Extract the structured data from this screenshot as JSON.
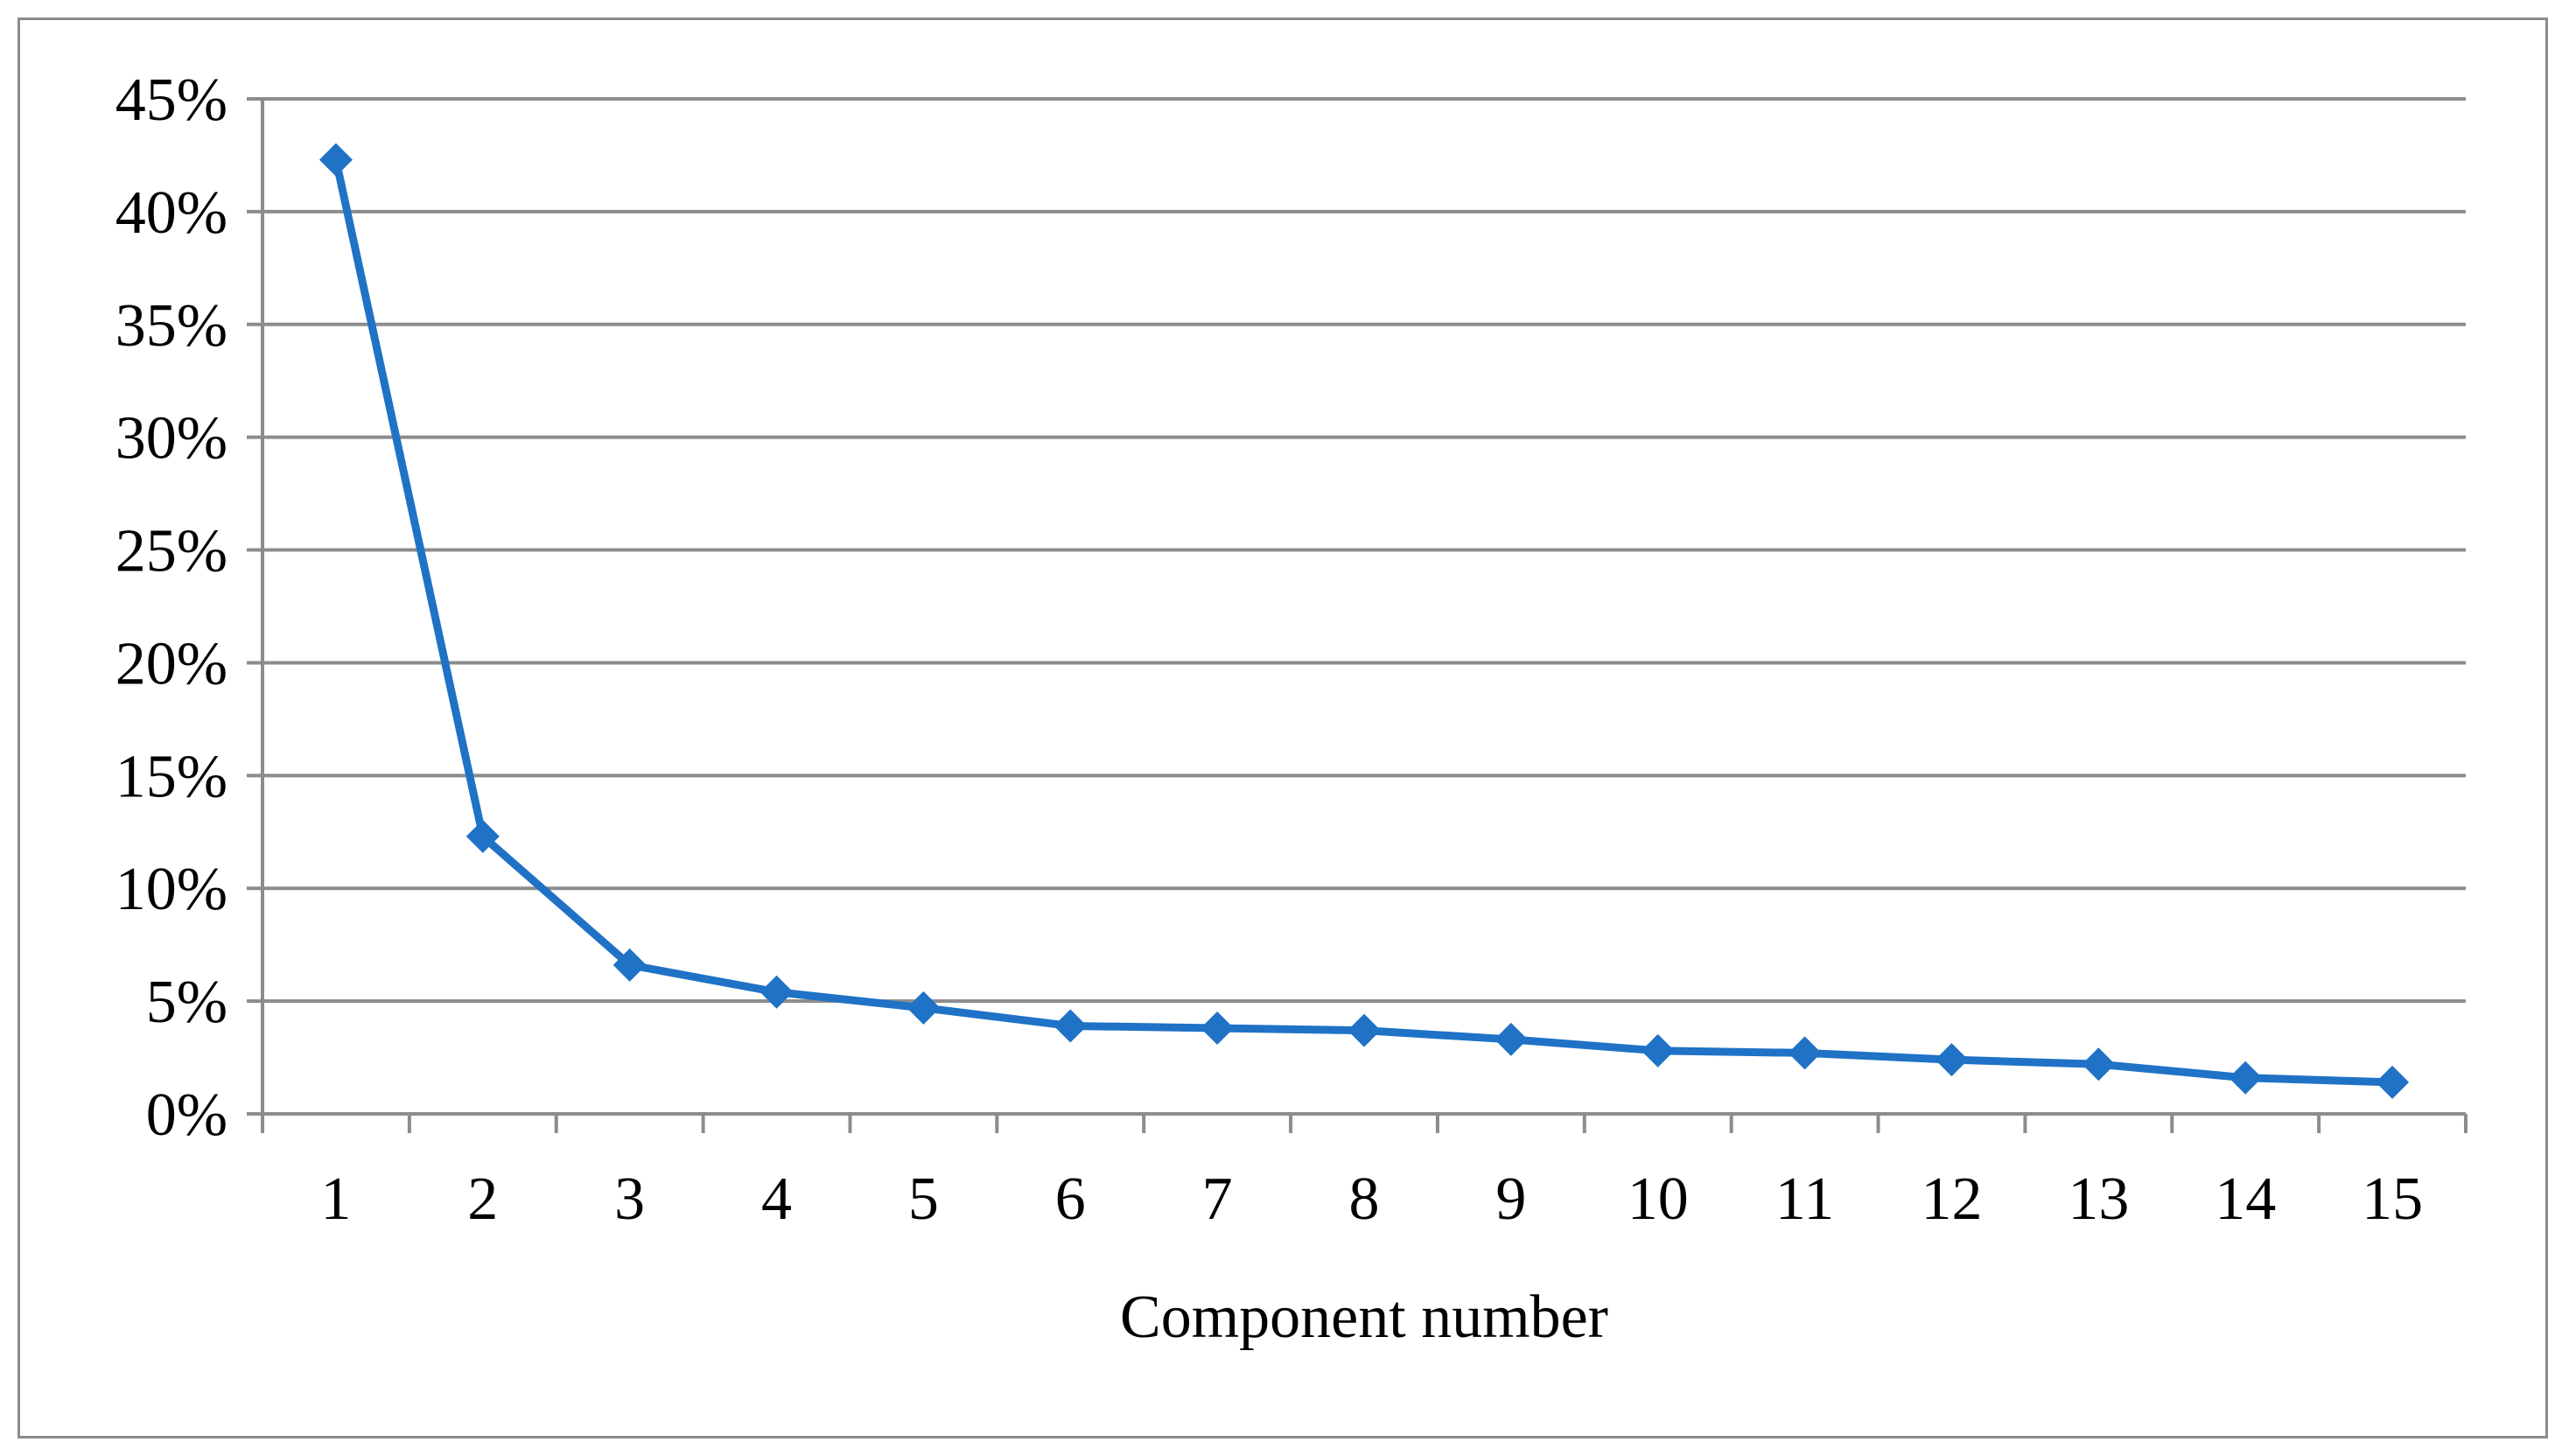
{
  "chart_data": {
    "type": "line",
    "title": "",
    "xlabel": "Component number",
    "ylabel": "",
    "categories": [
      "1",
      "2",
      "3",
      "4",
      "5",
      "6",
      "7",
      "8",
      "9",
      "10",
      "11",
      "12",
      "13",
      "14",
      "15"
    ],
    "series": [
      {
        "values": [
          42.3,
          12.3,
          6.6,
          5.4,
          4.7,
          3.9,
          3.8,
          3.7,
          3.3,
          2.8,
          2.7,
          2.4,
          2.2,
          1.6,
          1.4
        ]
      }
    ],
    "ylim": [
      0,
      45
    ],
    "yticks": [
      "0%",
      "5%",
      "10%",
      "15%",
      "20%",
      "25%",
      "30%",
      "35%",
      "40%",
      "45%"
    ],
    "grid": true,
    "legend": "none",
    "colors": {
      "line": "#1F72C6",
      "grid": "#8c8c8c",
      "axis": "#8c8c8c"
    }
  }
}
